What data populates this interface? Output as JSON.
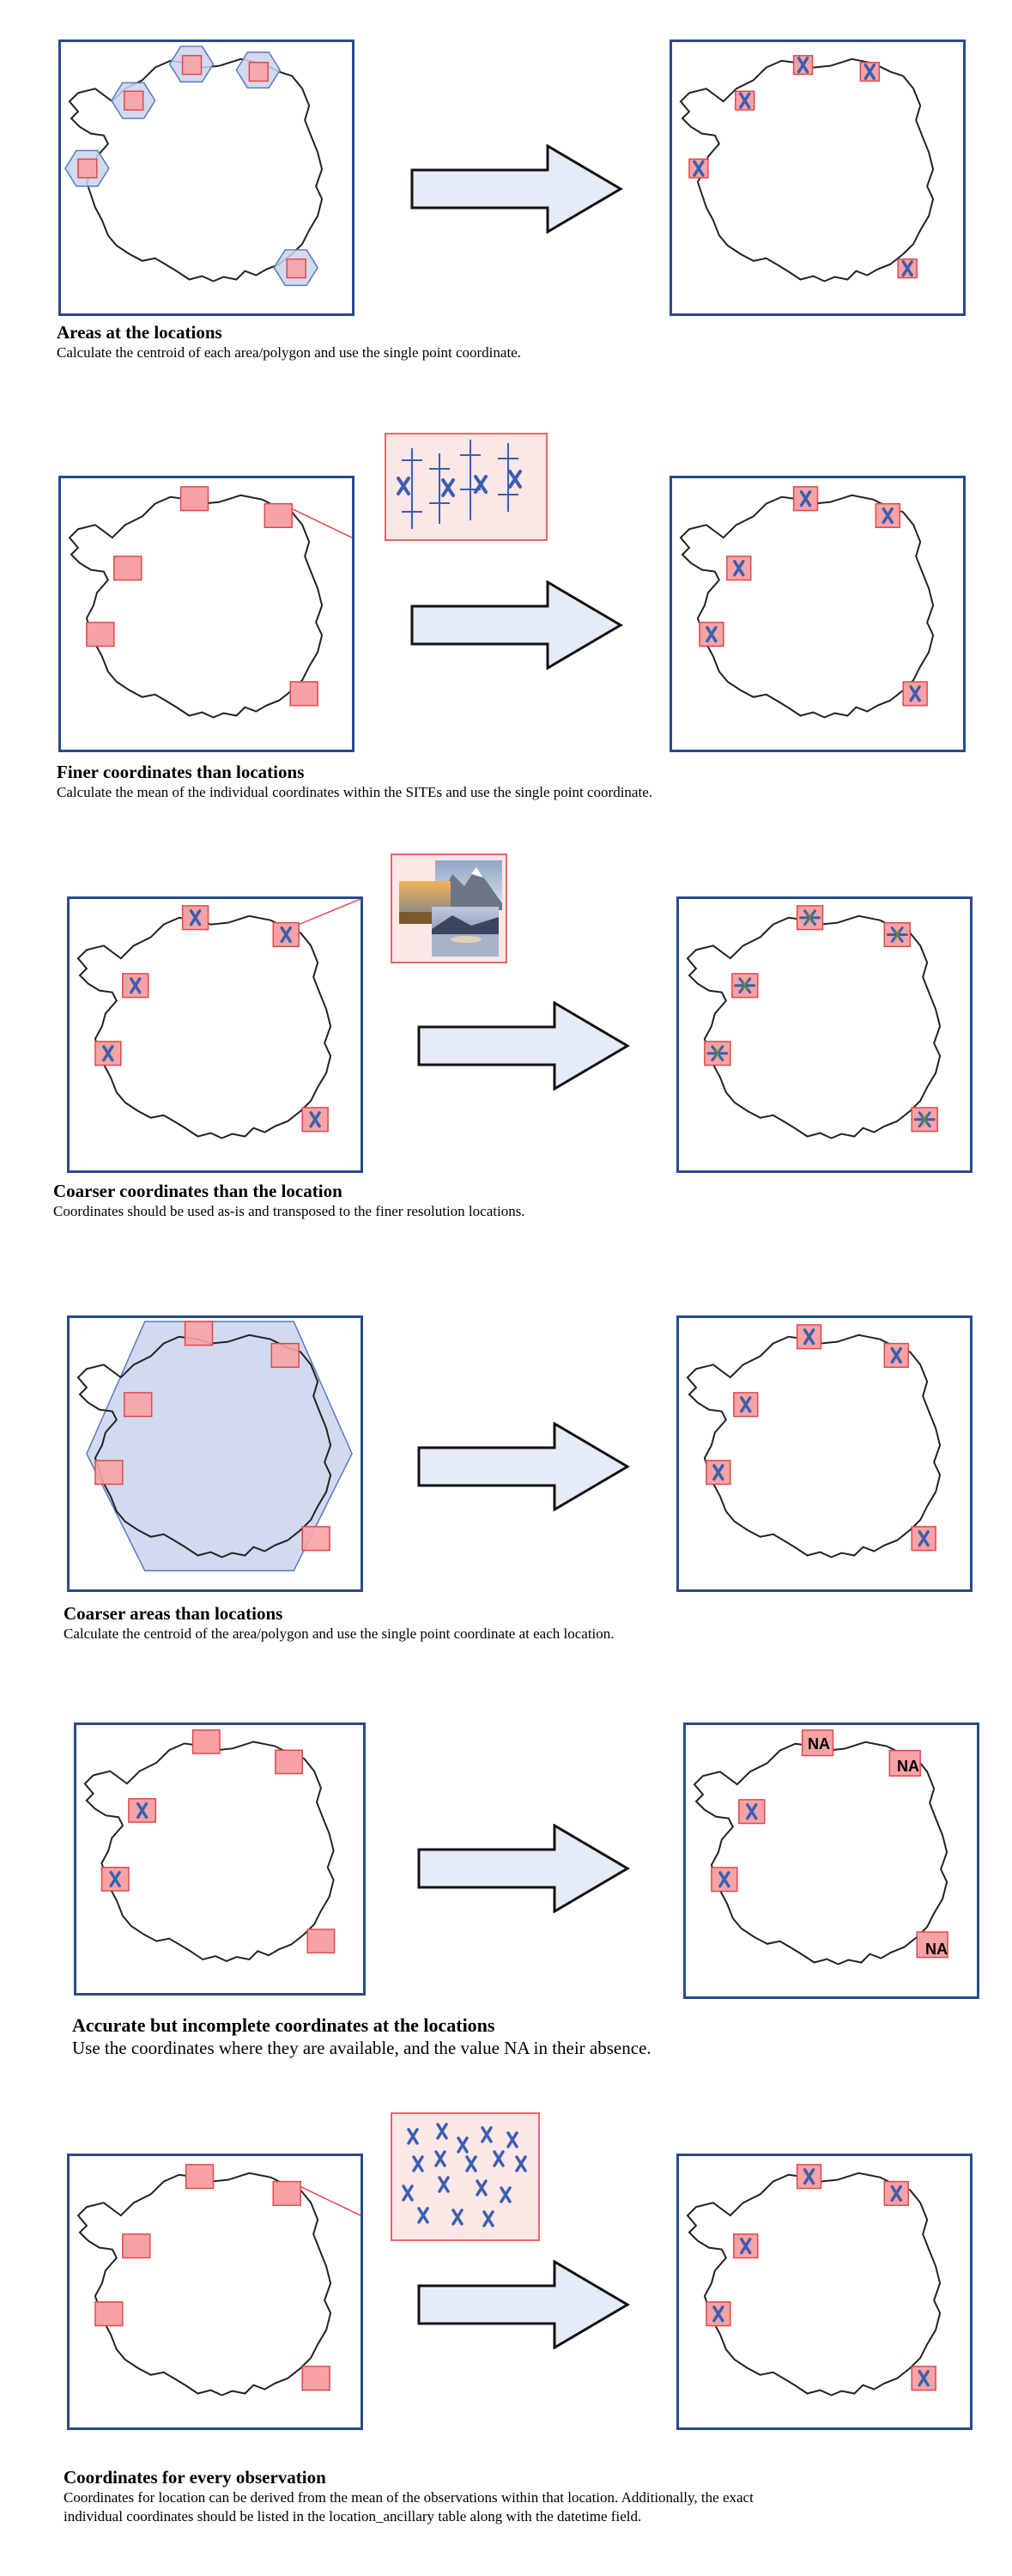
{
  "colors": {
    "frame": "#2a4a8c",
    "coast": "#222222",
    "site_fill": "#f7a3a5",
    "site_stroke": "#e0474c",
    "area_fill": "#c9d3ec",
    "area_stroke": "#5a78c0",
    "marker": "#3a5fb0",
    "arrow_fill": "#e6ecf7",
    "green_marker": "#5a8a4a"
  },
  "icons": {
    "arrow": "right-arrow-icon",
    "marker": "x-marker-icon",
    "map": "antarctica-outline"
  },
  "panels": [
    {
      "id": "areas",
      "title": "Areas at the locations",
      "text": "Calculate the centroid of each area/polygon and use the single point coordinate."
    },
    {
      "id": "finer",
      "title": "Finer coordinates than locations",
      "text": "Calculate the mean of the individual coordinates within the SITEs and use the single point coordinate."
    },
    {
      "id": "coarser",
      "title": "Coarser coordinates than the location",
      "text": "Coordinates should be used as-is and transposed to the finer resolution locations."
    },
    {
      "id": "coarser-areas",
      "title": "Coarser areas than locations",
      "text": "Calculate the centroid of the area/polygon and use the single point coordinate at each location."
    },
    {
      "id": "incomplete",
      "title": "Accurate but incomplete coordinates at the locations",
      "text": "Use the coordinates where they are available, and the value NA in their absence.",
      "na_label": "NA"
    },
    {
      "id": "every-observation",
      "title": "Coordinates for every observation",
      "text_line1": "Coordinates for location can be derived from the mean of the observations within that location. Additionally, the exact",
      "text_line2": "individual coordinates should be listed in the location_ancillary table along with the datetime field."
    }
  ]
}
